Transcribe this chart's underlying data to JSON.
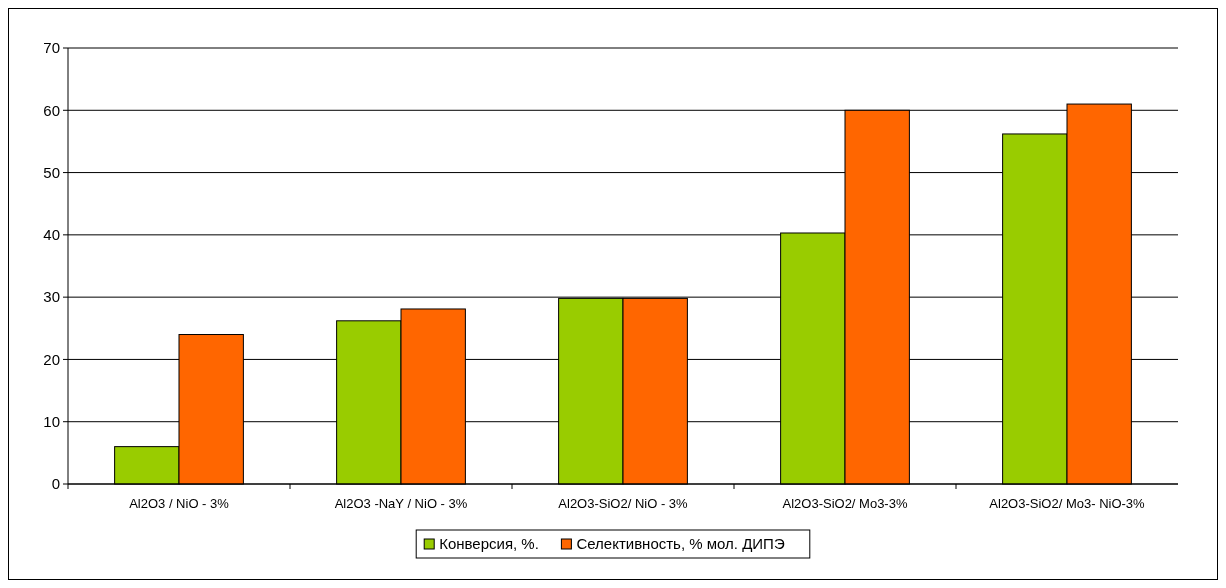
{
  "chart_data": {
    "type": "bar",
    "categories": [
      "Al2O3 / NiO - 3%",
      "Al2O3  -NaY / NiO - 3%",
      "Al2O3-SiO2/ NiO - 3%",
      "Al2O3-SiO2/ Mo3-3%",
      "Al2O3-SiO2/ Mo3- NiO-3%"
    ],
    "series": [
      {
        "name": "Конверсия, %.",
        "color": "#99cc00",
        "values": [
          6,
          26.2,
          29.8,
          40.3,
          56.2
        ]
      },
      {
        "name": "Селективность, % мол. ДИПЭ",
        "color": "#ff6600",
        "values": [
          24,
          28.1,
          29.8,
          60,
          61
        ]
      }
    ],
    "ylim": [
      0,
      70
    ],
    "yticks": [
      0,
      10,
      20,
      30,
      40,
      50,
      60,
      70
    ],
    "grid": "y",
    "legend": "bottom"
  }
}
